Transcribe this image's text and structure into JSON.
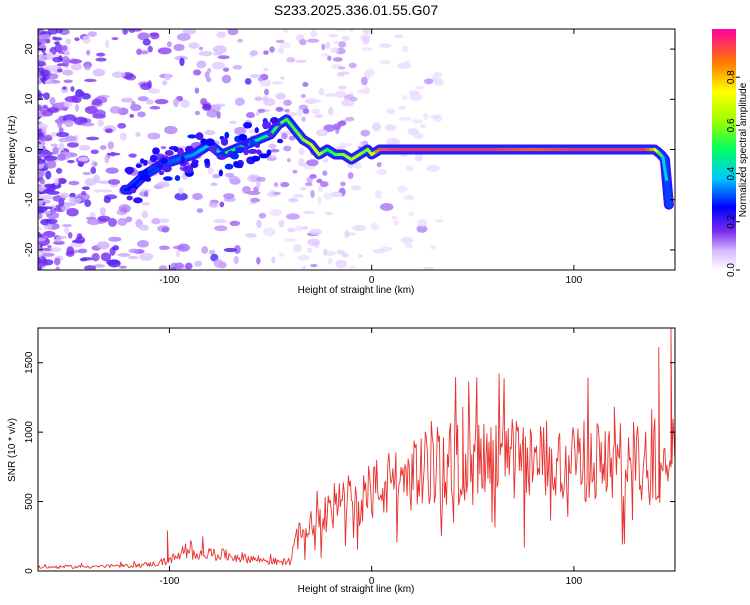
{
  "title": "S233.2025.336.01.55.G07",
  "chart_data": [
    {
      "type": "heatmap",
      "xlabel": "Height of straight line (km)",
      "ylabel": "Frequency (Hz)",
      "xlim": [
        -165,
        150
      ],
      "ylim": [
        -24,
        24
      ],
      "x_ticks": [
        -100,
        0,
        100
      ],
      "y_ticks": [
        -20,
        -10,
        0,
        10,
        20
      ],
      "grid": false,
      "colorbar": {
        "label": "Normalized spectral amplitude",
        "range": [
          0,
          1
        ],
        "ticks": [
          0.0,
          0.2,
          0.4,
          0.6,
          0.8
        ]
      },
      "signal_track": {
        "x": [
          -120,
          -112,
          -104,
          -96,
          -88,
          -80,
          -74,
          -68,
          -62,
          -56,
          -50,
          -46,
          -42,
          -38,
          -34,
          -30,
          -26,
          -22,
          -18,
          -14,
          -10,
          -6,
          -2,
          0,
          4,
          10,
          20,
          40,
          60,
          80,
          100,
          120,
          135,
          140,
          143,
          145,
          147
        ],
        "frequency": [
          -8,
          -5,
          -3,
          -2,
          -1,
          1,
          -1,
          0,
          1,
          2,
          3,
          5,
          6,
          4,
          2,
          1,
          -1,
          0,
          -1,
          -1,
          -2,
          -1,
          0,
          -1,
          0,
          0,
          0,
          0,
          0,
          0,
          0,
          0,
          0,
          0,
          -1,
          -2,
          -11
        ],
        "amplitude": [
          0.25,
          0.28,
          0.3,
          0.32,
          0.35,
          0.4,
          0.45,
          0.5,
          0.45,
          0.45,
          0.5,
          0.55,
          0.55,
          0.55,
          0.6,
          0.7,
          0.7,
          0.5,
          0.55,
          0.6,
          0.65,
          0.65,
          0.55,
          0.7,
          0.9,
          0.95,
          0.95,
          0.95,
          0.95,
          0.9,
          0.95,
          0.95,
          0.95,
          0.8,
          0.55,
          0.4,
          0.3
        ]
      }
    },
    {
      "type": "line",
      "xlabel": "Height of straight line (km)",
      "ylabel": "SNR (10 * v/v)",
      "xlim": [
        -165,
        150
      ],
      "ylim": [
        0,
        1750
      ],
      "x_ticks": [
        -100,
        0,
        100
      ],
      "y_ticks": [
        0,
        500,
        1000,
        1500
      ],
      "grid": false,
      "series": [
        {
          "color": "#e8312e",
          "envelope_x": [
            -165,
            -140,
            -120,
            -105,
            -95,
            -85,
            -75,
            -65,
            -55,
            -45,
            -40,
            -35,
            -30,
            -20,
            -10,
            0,
            10,
            20,
            30,
            40,
            50,
            60,
            70,
            80,
            90,
            100,
            110,
            120,
            130,
            140,
            145,
            147,
            149
          ],
          "envelope_y": [
            30,
            35,
            40,
            60,
            120,
            150,
            130,
            110,
            90,
            70,
            80,
            350,
            450,
            500,
            560,
            640,
            700,
            780,
            820,
            850,
            860,
            870,
            880,
            860,
            880,
            870,
            880,
            860,
            850,
            830,
            900,
            1200,
            900
          ],
          "spikes": [
            {
              "x": -101,
              "y": 290
            },
            {
              "x": 45,
              "y": 1180
            },
            {
              "x": 120,
              "y": 1180
            },
            {
              "x": 142,
              "y": 1610
            },
            {
              "x": 148,
              "y": 1750
            }
          ]
        }
      ]
    }
  ]
}
